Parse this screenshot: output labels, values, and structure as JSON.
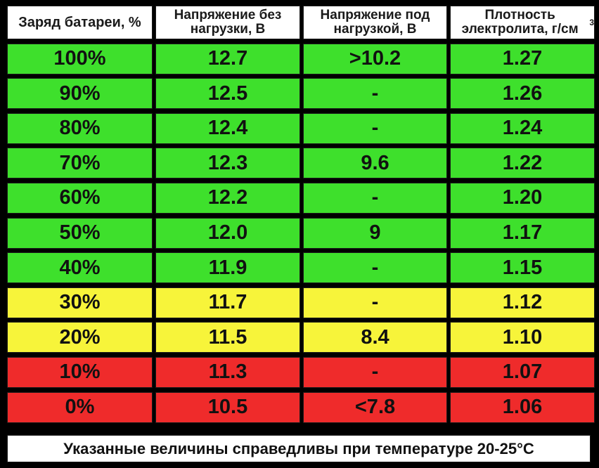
{
  "headers": [
    "Заряд батареи, %",
    "Напряжение без нагрузки, В",
    "Напряжение под нагрузкой, В",
    "Плотность электролита, г/см",
    "3"
  ],
  "colors": {
    "green": "#3ee02c",
    "yellow": "#f7f43a",
    "red": "#ef2b2b"
  },
  "rows": [
    {
      "charge": "100%",
      "open_voltage": "12.7",
      "load_voltage": ">10.2",
      "density": "1.27",
      "color": "green"
    },
    {
      "charge": "90%",
      "open_voltage": "12.5",
      "load_voltage": "-",
      "density": "1.26",
      "color": "green"
    },
    {
      "charge": "80%",
      "open_voltage": "12.4",
      "load_voltage": "-",
      "density": "1.24",
      "color": "green"
    },
    {
      "charge": "70%",
      "open_voltage": "12.3",
      "load_voltage": "9.6",
      "density": "1.22",
      "color": "green"
    },
    {
      "charge": "60%",
      "open_voltage": "12.2",
      "load_voltage": "-",
      "density": "1.20",
      "color": "green"
    },
    {
      "charge": "50%",
      "open_voltage": "12.0",
      "load_voltage": "9",
      "density": "1.17",
      "color": "green"
    },
    {
      "charge": "40%",
      "open_voltage": "11.9",
      "load_voltage": "-",
      "density": "1.15",
      "color": "green"
    },
    {
      "charge": "30%",
      "open_voltage": "11.7",
      "load_voltage": "-",
      "density": "1.12",
      "color": "yellow"
    },
    {
      "charge": "20%",
      "open_voltage": "11.5",
      "load_voltage": "8.4",
      "density": "1.10",
      "color": "yellow"
    },
    {
      "charge": "10%",
      "open_voltage": "11.3",
      "load_voltage": "-",
      "density": "1.07",
      "color": "red"
    },
    {
      "charge": "0%",
      "open_voltage": "10.5",
      "load_voltage": "<7.8",
      "density": "1.06",
      "color": "red"
    }
  ],
  "footer": "Указанные величины справедливы при температуре 20-25°С"
}
